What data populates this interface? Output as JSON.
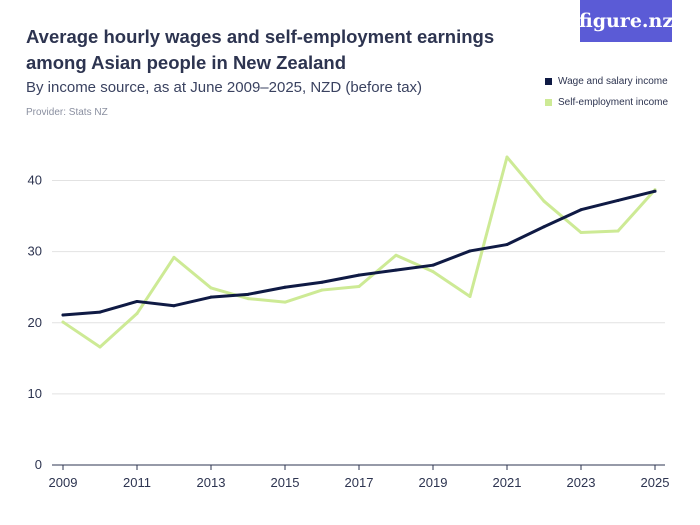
{
  "header": {
    "title": "Average hourly wages and self-employment earnings among Asian people in New Zealand",
    "subtitle": "By income source, as at June 2009–2025, NZD (before tax)",
    "provider": "Provider: Stats NZ",
    "logo_text": "figure.nz"
  },
  "colors": {
    "wage": "#0f1a44",
    "self": "#cdea95",
    "grid": "#e2e2e2",
    "logo_bg": "#5b5bd6"
  },
  "chart_data": {
    "type": "line",
    "x": [
      2009,
      2010,
      2011,
      2012,
      2013,
      2014,
      2015,
      2016,
      2017,
      2018,
      2019,
      2020,
      2021,
      2022,
      2023,
      2024,
      2025
    ],
    "series": [
      {
        "name": "Wage and salary income",
        "values": [
          21.1,
          21.5,
          23.0,
          22.4,
          23.6,
          24.0,
          25.0,
          25.7,
          26.7,
          27.4,
          28.1,
          30.1,
          31.0,
          33.5,
          35.9,
          37.2,
          38.5
        ]
      },
      {
        "name": "Self-employment income",
        "values": [
          20.1,
          16.6,
          21.3,
          29.2,
          24.9,
          23.4,
          22.9,
          24.6,
          25.1,
          29.5,
          27.2,
          23.7,
          43.3,
          37.1,
          32.7,
          32.9,
          38.7
        ]
      }
    ],
    "ylim": [
      0,
      45
    ],
    "yticks": [
      0,
      10,
      20,
      30,
      40
    ],
    "xticks": [
      2009,
      2011,
      2013,
      2015,
      2017,
      2019,
      2021,
      2023,
      2025
    ],
    "grid": true,
    "legend_position": "top-right"
  }
}
